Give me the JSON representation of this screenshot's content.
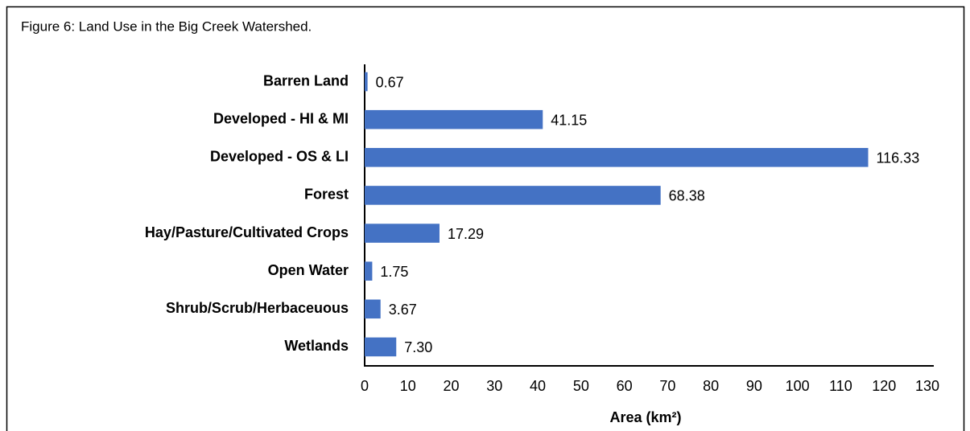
{
  "chart_data": {
    "type": "bar",
    "orientation": "horizontal",
    "title": "Figure 6: Land Use in the Big Creek Watershed.",
    "x_label": "Area (km²)",
    "categories": [
      "Barren Land",
      "Developed - HI & MI",
      "Developed - OS & LI",
      "Forest",
      "Hay/Pasture/Cultivated Crops",
      "Open Water",
      "Shrub/Scrub/Herbaceuous",
      "Wetlands"
    ],
    "values": [
      0.67,
      41.15,
      116.33,
      68.38,
      17.29,
      1.75,
      3.67,
      7.3
    ],
    "value_labels": [
      "0.67",
      "41.15",
      "116.33",
      "68.38",
      "17.29",
      "1.75",
      "3.67",
      "7.30"
    ],
    "color": "#4472c4",
    "xlim": [
      0,
      130
    ],
    "xticks": [
      0,
      10,
      20,
      30,
      40,
      50,
      60,
      70,
      80,
      90,
      100,
      110,
      120,
      130
    ],
    "grid": false
  }
}
